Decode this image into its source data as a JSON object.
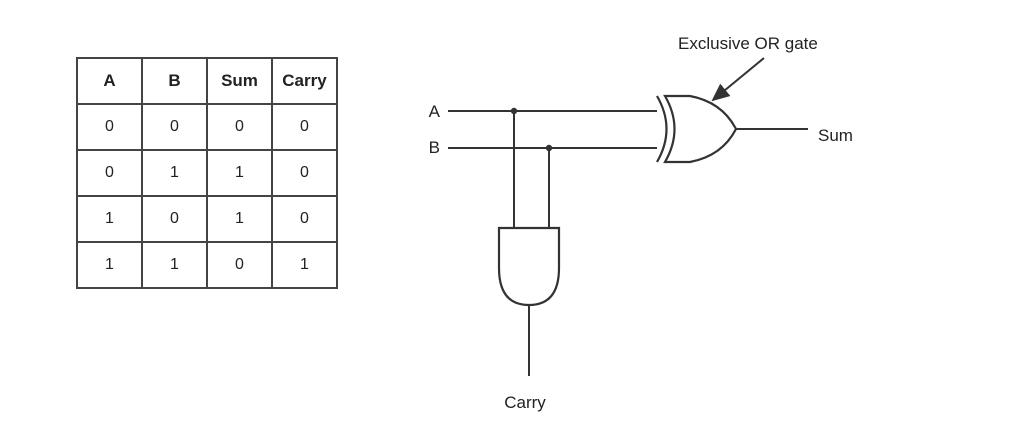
{
  "truth_table": {
    "headers": [
      "A",
      "B",
      "Sum",
      "Carry"
    ],
    "rows": [
      [
        "0",
        "0",
        "0",
        "0"
      ],
      [
        "0",
        "1",
        "1",
        "0"
      ],
      [
        "1",
        "0",
        "1",
        "0"
      ],
      [
        "1",
        "1",
        "0",
        "1"
      ]
    ]
  },
  "circuit": {
    "input_a_label": "A",
    "input_b_label": "B",
    "xor_gate_annotation": "Exclusive OR gate",
    "sum_output_label": "Sum",
    "carry_output_label": "Carry"
  }
}
